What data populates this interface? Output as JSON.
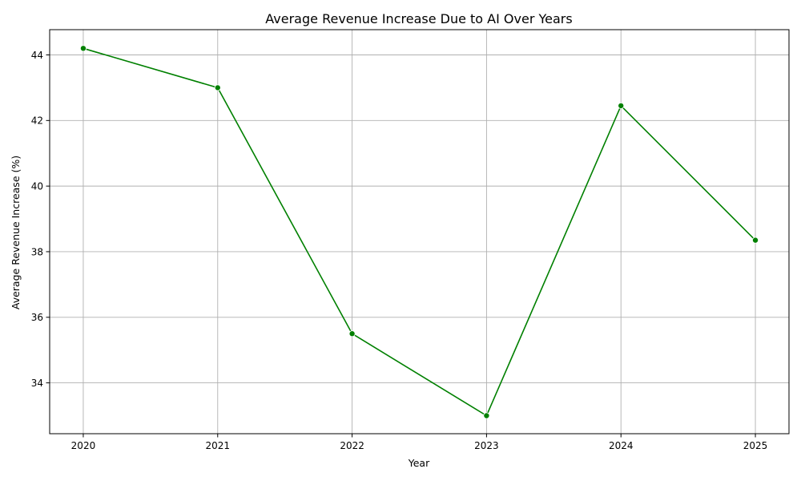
{
  "chart_data": {
    "type": "line",
    "title": "Average Revenue Increase Due to AI Over Years",
    "xlabel": "Year",
    "ylabel": "Average Revenue Increase (%)",
    "x": [
      2020,
      2021,
      2022,
      2023,
      2024,
      2025
    ],
    "series": [
      {
        "values": [
          44.2,
          43.0,
          35.5,
          33.0,
          42.45,
          38.35
        ],
        "color": "#008000"
      }
    ],
    "xlim": [
      2019.75,
      2025.25
    ],
    "ylim": [
      32.45,
      44.77
    ],
    "xticks": [
      2020,
      2021,
      2022,
      2023,
      2024,
      2025
    ],
    "yticks": [
      34,
      36,
      38,
      40,
      42,
      44
    ],
    "grid": true,
    "marker": "circle"
  }
}
